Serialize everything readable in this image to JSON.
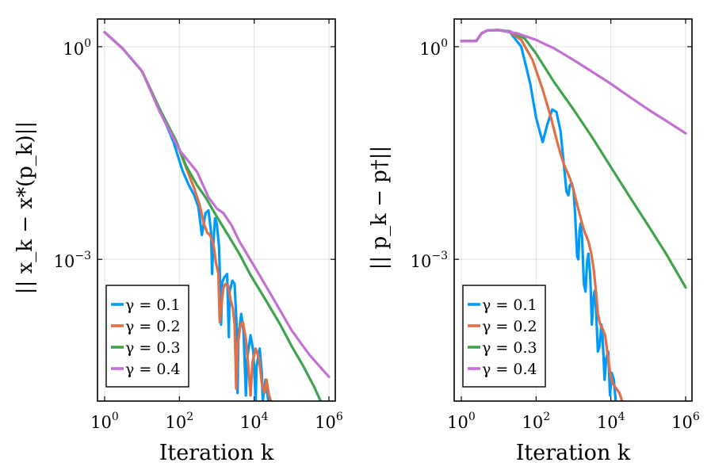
{
  "chart_data": [
    {
      "type": "line",
      "scale": "log-log",
      "xlabel": "Iteration k",
      "ylabel": "|| x_k − x*(p_k)||",
      "xlim": [
        1,
        1000000
      ],
      "ylim": [
        1e-05,
        2.0
      ],
      "xticks": [
        {
          "base": "10",
          "exp": "0"
        },
        {
          "base": "10",
          "exp": "2"
        },
        {
          "base": "10",
          "exp": "4"
        },
        {
          "base": "10",
          "exp": "6"
        }
      ],
      "yticks": [
        {
          "base": "10",
          "exp": "0"
        },
        {
          "base": "10",
          "exp": "−3"
        }
      ],
      "grid": true,
      "legend_position": "bottom-left",
      "series": [
        {
          "name": "γ = 0.1",
          "color": "#009AFA",
          "points": [
            [
              1,
              1.6
            ],
            [
              3,
              0.95
            ],
            [
              10,
              0.45
            ],
            [
              30,
              0.13
            ],
            [
              70,
              0.045
            ],
            [
              120,
              0.018
            ],
            [
              180,
              0.011
            ],
            [
              250,
              0.008
            ],
            [
              320,
              0.0055
            ],
            [
              400,
              0.0022
            ],
            [
              500,
              0.0045
            ],
            [
              600,
              0.0049
            ],
            [
              700,
              0.0025
            ],
            [
              750,
              0.00062
            ],
            [
              800,
              0.0015
            ],
            [
              900,
              0.0038
            ],
            [
              1000,
              0.0032
            ],
            [
              1150,
              0.0015
            ],
            [
              1300,
              0.00012
            ],
            [
              1400,
              0.00048
            ],
            [
              1600,
              0.00056
            ],
            [
              1900,
              0.00062
            ],
            [
              2100,
              8e-05
            ],
            [
              2200,
              0.00035
            ],
            [
              2600,
              0.0005
            ],
            [
              3000,
              0.00045
            ],
            [
              3400,
              0.00011
            ],
            [
              3600,
              1.3e-05
            ],
            [
              3800,
              8e-05
            ],
            [
              4500,
              0.00017
            ],
            [
              5200,
              9.5e-05
            ],
            [
              6000,
              1.2e-05
            ],
            [
              6500,
              4e-05
            ],
            [
              8000,
              8.5e-05
            ],
            [
              9500,
              5e-05
            ],
            [
              11000,
              1e-05
            ],
            [
              11500,
              3e-05
            ],
            [
              14000,
              5.5e-05
            ],
            [
              16000,
              2.5e-05
            ],
            [
              17000,
              1e-05
            ],
            [
              20000,
              2e-05
            ],
            [
              24000,
              1e-05
            ]
          ]
        },
        {
          "name": "γ = 0.2",
          "color": "#E26F46",
          "points": [
            [
              1,
              1.6
            ],
            [
              3,
              0.95
            ],
            [
              10,
              0.45
            ],
            [
              30,
              0.13
            ],
            [
              80,
              0.047
            ],
            [
              150,
              0.02
            ],
            [
              250,
              0.01
            ],
            [
              350,
              0.0058
            ],
            [
              450,
              0.0032
            ],
            [
              550,
              0.0024
            ],
            [
              650,
              0.0022
            ],
            [
              750,
              0.0019
            ],
            [
              850,
              0.0014
            ],
            [
              950,
              0.0009
            ],
            [
              1100,
              0.00062
            ],
            [
              1200,
              0.00013
            ],
            [
              1300,
              0.0002
            ],
            [
              1500,
              0.00039
            ],
            [
              1700,
              0.00045
            ],
            [
              2000,
              0.00043
            ],
            [
              2300,
              0.00028
            ],
            [
              2700,
              0.0002
            ],
            [
              3000,
              0.00012
            ],
            [
              3300,
              1.5e-05
            ],
            [
              3600,
              6e-05
            ],
            [
              4300,
              0.00012
            ],
            [
              5000,
              0.00013
            ],
            [
              6000,
              7.5e-05
            ],
            [
              7000,
              3e-05
            ],
            [
              8000,
              1.2e-05
            ],
            [
              9000,
              3.5e-05
            ],
            [
              11000,
              5.5e-05
            ],
            [
              13500,
              4e-05
            ],
            [
              16000,
              1.8e-05
            ],
            [
              19000,
              1.3e-05
            ],
            [
              21500,
              2e-05
            ],
            [
              25000,
              1.2e-05
            ],
            [
              28000,
              1e-05
            ]
          ]
        },
        {
          "name": "γ = 0.3",
          "color": "#3EA44E",
          "points": [
            [
              1,
              1.6
            ],
            [
              3,
              0.95
            ],
            [
              10,
              0.45
            ],
            [
              30,
              0.13
            ],
            [
              80,
              0.048
            ],
            [
              150,
              0.021
            ],
            [
              300,
              0.011
            ],
            [
              500,
              0.0075
            ],
            [
              1000,
              0.004
            ],
            [
              2000,
              0.0022
            ],
            [
              4000,
              0.0012
            ],
            [
              8000,
              0.0006
            ],
            [
              20000,
              0.00027
            ],
            [
              50000,
              0.00012
            ],
            [
              100000,
              6e-05
            ],
            [
              200000,
              3.2e-05
            ],
            [
              400000,
              1.6e-05
            ],
            [
              600000,
              1e-05
            ]
          ]
        },
        {
          "name": "γ = 0.4",
          "color": "#C271D2",
          "points": [
            [
              1,
              1.6
            ],
            [
              3,
              0.95
            ],
            [
              10,
              0.45
            ],
            [
              30,
              0.12
            ],
            [
              100,
              0.035
            ],
            [
              300,
              0.017
            ],
            [
              600,
              0.0075
            ],
            [
              1000,
              0.0052
            ],
            [
              1500,
              0.0045
            ],
            [
              2500,
              0.003
            ],
            [
              4000,
              0.0018
            ],
            [
              10000,
              0.0008
            ],
            [
              30000,
              0.0003
            ],
            [
              100000,
              0.0001
            ],
            [
              300000,
              4.5e-05
            ],
            [
              1000000,
              2.2e-05
            ]
          ]
        }
      ]
    },
    {
      "type": "line",
      "scale": "log-log",
      "xlabel": "Iteration k",
      "ylabel": "|| p_k − p†||",
      "xlim": [
        1,
        1000000
      ],
      "ylim": [
        1e-05,
        2.0
      ],
      "xticks": [
        {
          "base": "10",
          "exp": "0"
        },
        {
          "base": "10",
          "exp": "2"
        },
        {
          "base": "10",
          "exp": "4"
        },
        {
          "base": "10",
          "exp": "6"
        }
      ],
      "yticks": [
        {
          "base": "10",
          "exp": "0"
        },
        {
          "base": "10",
          "exp": "−3"
        }
      ],
      "grid": true,
      "legend_position": "bottom-left",
      "series": [
        {
          "name": "γ = 0.1",
          "color": "#009AFA",
          "points": [
            [
              1,
              1.2
            ],
            [
              2.5,
              1.2
            ],
            [
              3.5,
              1.55
            ],
            [
              5,
              1.7
            ],
            [
              10,
              1.72
            ],
            [
              20,
              1.6
            ],
            [
              40,
              1.0
            ],
            [
              70,
              0.3
            ],
            [
              100,
              0.1
            ],
            [
              150,
              0.045
            ],
            [
              200,
              0.08
            ],
            [
              270,
              0.13
            ],
            [
              350,
              0.12
            ],
            [
              450,
              0.065
            ],
            [
              550,
              0.022
            ],
            [
              650,
              0.009
            ],
            [
              730,
              0.008
            ],
            [
              800,
              0.011
            ],
            [
              900,
              0.012
            ],
            [
              1000,
              0.0095
            ],
            [
              1100,
              0.0045
            ],
            [
              1250,
              0.0011
            ],
            [
              1350,
              0.001
            ],
            [
              1450,
              0.0025
            ],
            [
              1550,
              0.0032
            ],
            [
              1700,
              0.002
            ],
            [
              1900,
              0.00045
            ],
            [
              2100,
              0.00035
            ],
            [
              2300,
              0.0009
            ],
            [
              2500,
              0.0012
            ],
            [
              2800,
              0.0006
            ],
            [
              3100,
              0.00012
            ],
            [
              3400,
              0.00028
            ],
            [
              3700,
              0.00036
            ],
            [
              4000,
              0.0002
            ],
            [
              4500,
              5e-05
            ],
            [
              5000,
              6e-05
            ],
            [
              5600,
              0.00012
            ],
            [
              6000,
              8e-05
            ],
            [
              6800,
              2e-05
            ],
            [
              7500,
              4e-05
            ],
            [
              8500,
              5e-05
            ],
            [
              9500,
              1.2e-05
            ],
            [
              10500,
              2.5e-05
            ],
            [
              12000,
              2e-05
            ],
            [
              13500,
              1e-05
            ]
          ]
        },
        {
          "name": "γ = 0.2",
          "color": "#E26F46",
          "points": [
            [
              1,
              1.2
            ],
            [
              2.5,
              1.2
            ],
            [
              3.5,
              1.55
            ],
            [
              5,
              1.7
            ],
            [
              10,
              1.72
            ],
            [
              20,
              1.6
            ],
            [
              40,
              1.25
            ],
            [
              80,
              0.65
            ],
            [
              150,
              0.25
            ],
            [
              250,
              0.1
            ],
            [
              350,
              0.05
            ],
            [
              450,
              0.031
            ],
            [
              550,
              0.022
            ],
            [
              650,
              0.018
            ],
            [
              800,
              0.014
            ],
            [
              1000,
              0.0095
            ],
            [
              1300,
              0.0055
            ],
            [
              1700,
              0.0032
            ],
            [
              2000,
              0.0024
            ],
            [
              2500,
              0.0018
            ],
            [
              3000,
              0.0012
            ],
            [
              3500,
              0.0007
            ],
            [
              4000,
              0.00035
            ],
            [
              4500,
              0.00017
            ],
            [
              5200,
              0.00012
            ],
            [
              6000,
              0.000105
            ],
            [
              7000,
              8.5e-05
            ],
            [
              8000,
              5e-05
            ],
            [
              9500,
              2.5e-05
            ],
            [
              11000,
              1.8e-05
            ],
            [
              14000,
              1.5e-05
            ],
            [
              17000,
              1.3e-05
            ],
            [
              20000,
              1e-05
            ]
          ]
        },
        {
          "name": "γ = 0.3",
          "color": "#3EA44E",
          "points": [
            [
              1,
              1.2
            ],
            [
              2.5,
              1.2
            ],
            [
              3.5,
              1.55
            ],
            [
              5,
              1.7
            ],
            [
              10,
              1.72
            ],
            [
              20,
              1.65
            ],
            [
              50,
              1.3
            ],
            [
              100,
              0.8
            ],
            [
              300,
              0.32
            ],
            [
              1000,
              0.13
            ],
            [
              3000,
              0.055
            ],
            [
              10000,
              0.02
            ],
            [
              30000,
              0.008
            ],
            [
              100000,
              0.003
            ],
            [
              300000,
              0.0012
            ],
            [
              1000000,
              0.0004
            ]
          ]
        },
        {
          "name": "γ = 0.4",
          "color": "#C271D2",
          "points": [
            [
              1,
              1.2
            ],
            [
              2.5,
              1.2
            ],
            [
              3.5,
              1.55
            ],
            [
              5,
              1.7
            ],
            [
              10,
              1.72
            ],
            [
              30,
              1.55
            ],
            [
              100,
              1.25
            ],
            [
              300,
              0.95
            ],
            [
              1000,
              0.65
            ],
            [
              3000,
              0.45
            ],
            [
              10000,
              0.3
            ],
            [
              30000,
              0.2
            ],
            [
              100000,
              0.13
            ],
            [
              300000,
              0.09
            ],
            [
              1000000,
              0.06
            ]
          ]
        }
      ]
    }
  ]
}
